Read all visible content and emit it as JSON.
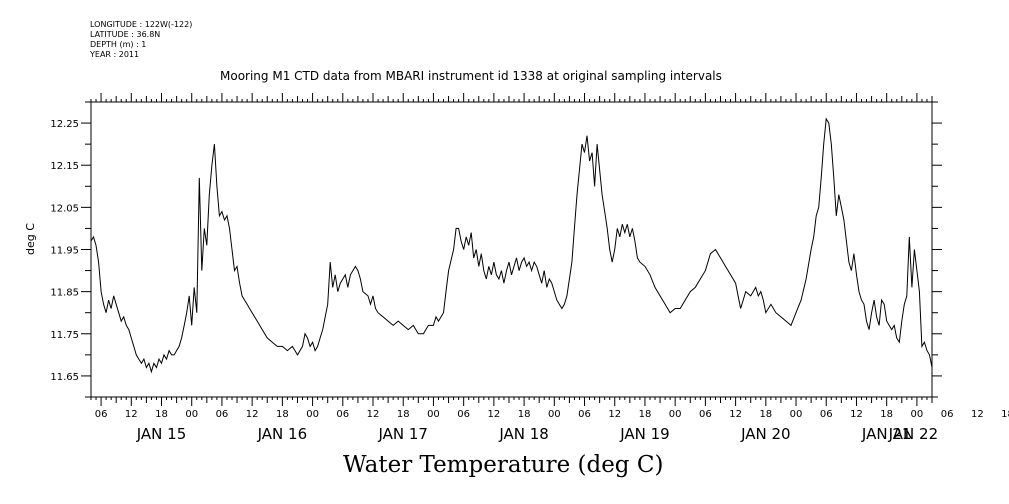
{
  "meta": {
    "longitude": "LONGITUDE : 122W(-122)",
    "latitude": "LATITUDE : 36.8N",
    "depth": "DEPTH (m) : 1",
    "year": "YEAR : 2011"
  },
  "chart_data": {
    "type": "line",
    "title": "Mooring M1 CTD data from MBARI instrument id 1338 at original sampling intervals",
    "xlabel": "Water Temperature (deg C)",
    "ylabel": "deg C",
    "xlim_hours": [
      0,
      167
    ],
    "ylim": [
      11.6,
      12.3
    ],
    "yticks": [
      "11.65",
      "11.75",
      "11.85",
      "11.95",
      "12.05",
      "12.15",
      "12.25"
    ],
    "hour_tick_labels": [
      "06",
      "12",
      "18",
      "00",
      "06",
      "12",
      "18",
      "00",
      "06",
      "12",
      "18",
      "00",
      "06",
      "12",
      "18",
      "00",
      "06",
      "12",
      "18",
      "00",
      "06",
      "12",
      "18",
      "00",
      "06",
      "12",
      "18",
      "00",
      "06",
      "12",
      "18",
      "00"
    ],
    "day_labels": [
      "JAN 15",
      "JAN 16",
      "JAN 17",
      "JAN 18",
      "JAN 19",
      "JAN 20",
      "JAN 21",
      "JAN 22"
    ],
    "series": [
      {
        "points": [
          [
            0,
            11.97
          ],
          [
            0.5,
            11.98
          ],
          [
            1,
            11.96
          ],
          [
            1.5,
            11.92
          ],
          [
            2,
            11.85
          ],
          [
            2.5,
            11.82
          ],
          [
            3,
            11.8
          ],
          [
            3.5,
            11.83
          ],
          [
            4,
            11.81
          ],
          [
            4.5,
            11.84
          ],
          [
            5,
            11.82
          ],
          [
            5.5,
            11.8
          ],
          [
            6,
            11.78
          ],
          [
            6.5,
            11.79
          ],
          [
            7,
            11.77
          ],
          [
            7.5,
            11.76
          ],
          [
            8,
            11.74
          ],
          [
            8.5,
            11.72
          ],
          [
            9,
            11.7
          ],
          [
            9.5,
            11.69
          ],
          [
            10,
            11.68
          ],
          [
            10.5,
            11.69
          ],
          [
            11,
            11.67
          ],
          [
            11.5,
            11.68
          ],
          [
            12,
            11.66
          ],
          [
            12.5,
            11.68
          ],
          [
            13,
            11.67
          ],
          [
            13.5,
            11.69
          ],
          [
            14,
            11.68
          ],
          [
            14.5,
            11.7
          ],
          [
            15,
            11.69
          ],
          [
            15.5,
            11.71
          ],
          [
            16,
            11.7
          ],
          [
            16.5,
            11.7
          ],
          [
            17,
            11.71
          ],
          [
            17.5,
            11.72
          ],
          [
            18,
            11.74
          ],
          [
            18.5,
            11.77
          ],
          [
            19,
            11.8
          ],
          [
            19.5,
            11.84
          ],
          [
            20,
            11.77
          ],
          [
            20.5,
            11.86
          ],
          [
            21,
            11.8
          ],
          [
            21.5,
            12.12
          ],
          [
            22,
            11.9
          ],
          [
            22.5,
            12.0
          ],
          [
            23,
            11.96
          ],
          [
            23.5,
            12.08
          ],
          [
            24,
            12.15
          ],
          [
            24.5,
            12.2
          ],
          [
            25,
            12.1
          ],
          [
            25.5,
            12.03
          ],
          [
            26,
            12.04
          ],
          [
            26.5,
            12.02
          ],
          [
            27,
            12.03
          ],
          [
            27.5,
            12.0
          ],
          [
            28,
            11.95
          ],
          [
            28.5,
            11.9
          ],
          [
            29,
            11.91
          ],
          [
            29.5,
            11.87
          ],
          [
            30,
            11.84
          ],
          [
            30.5,
            11.83
          ],
          [
            31,
            11.82
          ],
          [
            32,
            11.8
          ],
          [
            33,
            11.78
          ],
          [
            34,
            11.76
          ],
          [
            35,
            11.74
          ],
          [
            36,
            11.73
          ],
          [
            37,
            11.72
          ],
          [
            38,
            11.72
          ],
          [
            39,
            11.71
          ],
          [
            40,
            11.72
          ],
          [
            41,
            11.7
          ],
          [
            42,
            11.72
          ],
          [
            42.5,
            11.75
          ],
          [
            43,
            11.74
          ],
          [
            43.5,
            11.72
          ],
          [
            44,
            11.73
          ],
          [
            44.5,
            11.71
          ],
          [
            45,
            11.72
          ],
          [
            45.5,
            11.74
          ],
          [
            46,
            11.76
          ],
          [
            46.5,
            11.79
          ],
          [
            47,
            11.82
          ],
          [
            47.5,
            11.92
          ],
          [
            48,
            11.86
          ],
          [
            48.5,
            11.89
          ],
          [
            49,
            11.85
          ],
          [
            49.5,
            11.87
          ],
          [
            50,
            11.88
          ],
          [
            50.5,
            11.89
          ],
          [
            51,
            11.86
          ],
          [
            51.5,
            11.89
          ],
          [
            52,
            11.9
          ],
          [
            52.5,
            11.91
          ],
          [
            53,
            11.9
          ],
          [
            53.5,
            11.88
          ],
          [
            54,
            11.85
          ],
          [
            55,
            11.84
          ],
          [
            55.5,
            11.82
          ],
          [
            56,
            11.84
          ],
          [
            56.5,
            11.81
          ],
          [
            57,
            11.8
          ],
          [
            58,
            11.79
          ],
          [
            59,
            11.78
          ],
          [
            60,
            11.77
          ],
          [
            61,
            11.78
          ],
          [
            62,
            11.77
          ],
          [
            63,
            11.76
          ],
          [
            64,
            11.77
          ],
          [
            65,
            11.75
          ],
          [
            66,
            11.75
          ],
          [
            67,
            11.77
          ],
          [
            68,
            11.77
          ],
          [
            68.5,
            11.79
          ],
          [
            69,
            11.78
          ],
          [
            70,
            11.8
          ],
          [
            70.5,
            11.85
          ],
          [
            71,
            11.9
          ],
          [
            72,
            11.95
          ],
          [
            72.5,
            12.0
          ],
          [
            73,
            12.0
          ],
          [
            73.5,
            11.97
          ],
          [
            74,
            11.95
          ],
          [
            74.5,
            11.98
          ],
          [
            75,
            11.96
          ],
          [
            75.5,
            11.99
          ],
          [
            76,
            11.93
          ],
          [
            76.5,
            11.95
          ],
          [
            77,
            11.91
          ],
          [
            77.5,
            11.94
          ],
          [
            78,
            11.9
          ],
          [
            78.5,
            11.88
          ],
          [
            79,
            11.91
          ],
          [
            79.5,
            11.89
          ],
          [
            80,
            11.92
          ],
          [
            80.5,
            11.89
          ],
          [
            81,
            11.88
          ],
          [
            81.5,
            11.9
          ],
          [
            82,
            11.87
          ],
          [
            82.5,
            11.9
          ],
          [
            83,
            11.92
          ],
          [
            83.5,
            11.89
          ],
          [
            84,
            11.91
          ],
          [
            84.5,
            11.93
          ],
          [
            85,
            11.9
          ],
          [
            85.5,
            11.92
          ],
          [
            86,
            11.93
          ],
          [
            86.5,
            11.91
          ],
          [
            87,
            11.92
          ],
          [
            87.5,
            11.9
          ],
          [
            88,
            11.92
          ],
          [
            88.5,
            11.91
          ],
          [
            89,
            11.89
          ],
          [
            89.5,
            11.87
          ],
          [
            90,
            11.9
          ],
          [
            90.5,
            11.86
          ],
          [
            91,
            11.88
          ],
          [
            91.5,
            11.87
          ],
          [
            92,
            11.85
          ],
          [
            92.5,
            11.83
          ],
          [
            93,
            11.82
          ],
          [
            93.5,
            11.81
          ],
          [
            94,
            11.82
          ],
          [
            94.5,
            11.84
          ],
          [
            95,
            11.88
          ],
          [
            95.5,
            11.92
          ],
          [
            96,
            12.0
          ],
          [
            96.5,
            12.08
          ],
          [
            97,
            12.14
          ],
          [
            97.5,
            12.2
          ],
          [
            98,
            12.18
          ],
          [
            98.5,
            12.22
          ],
          [
            99,
            12.16
          ],
          [
            99.5,
            12.18
          ],
          [
            100,
            12.1
          ],
          [
            100.5,
            12.2
          ],
          [
            101,
            12.14
          ],
          [
            101.5,
            12.08
          ],
          [
            102,
            12.04
          ],
          [
            102.5,
            12.0
          ],
          [
            103,
            11.95
          ],
          [
            103.5,
            11.92
          ],
          [
            104,
            11.95
          ],
          [
            104.5,
            12.0
          ],
          [
            105,
            11.98
          ],
          [
            105.5,
            12.01
          ],
          [
            106,
            11.99
          ],
          [
            106.5,
            12.01
          ],
          [
            107,
            11.98
          ],
          [
            107.5,
            12.0
          ],
          [
            108,
            11.97
          ],
          [
            108.5,
            11.93
          ],
          [
            109,
            11.92
          ],
          [
            110,
            11.91
          ],
          [
            111,
            11.89
          ],
          [
            112,
            11.86
          ],
          [
            113,
            11.84
          ],
          [
            114,
            11.82
          ],
          [
            115,
            11.8
          ],
          [
            116,
            11.81
          ],
          [
            117,
            11.81
          ],
          [
            118,
            11.83
          ],
          [
            119,
            11.85
          ],
          [
            120,
            11.86
          ],
          [
            121,
            11.88
          ],
          [
            122,
            11.9
          ],
          [
            123,
            11.94
          ],
          [
            124,
            11.95
          ],
          [
            125,
            11.93
          ],
          [
            126,
            11.91
          ],
          [
            127,
            11.89
          ],
          [
            128,
            11.87
          ],
          [
            128.5,
            11.84
          ],
          [
            129,
            11.81
          ],
          [
            129.5,
            11.83
          ],
          [
            130,
            11.85
          ],
          [
            131,
            11.84
          ],
          [
            132,
            11.86
          ],
          [
            132.5,
            11.84
          ],
          [
            133,
            11.85
          ],
          [
            133.5,
            11.83
          ],
          [
            134,
            11.8
          ],
          [
            135,
            11.82
          ],
          [
            136,
            11.8
          ],
          [
            137,
            11.79
          ],
          [
            138,
            11.78
          ],
          [
            139,
            11.77
          ],
          [
            140,
            11.8
          ],
          [
            141,
            11.83
          ],
          [
            142,
            11.88
          ],
          [
            143,
            11.95
          ],
          [
            143.5,
            11.98
          ],
          [
            144,
            12.03
          ],
          [
            144.5,
            12.05
          ],
          [
            145,
            12.12
          ],
          [
            145.5,
            12.2
          ],
          [
            146,
            12.26
          ],
          [
            146.5,
            12.25
          ],
          [
            147,
            12.2
          ],
          [
            147.5,
            12.12
          ],
          [
            148,
            12.03
          ],
          [
            148.5,
            12.08
          ],
          [
            149,
            12.05
          ],
          [
            149.5,
            12.02
          ],
          [
            150,
            11.97
          ],
          [
            150.5,
            11.92
          ],
          [
            151,
            11.9
          ],
          [
            151.5,
            11.94
          ],
          [
            152,
            11.89
          ],
          [
            152.5,
            11.85
          ],
          [
            153,
            11.83
          ],
          [
            153.5,
            11.82
          ],
          [
            154,
            11.78
          ],
          [
            154.5,
            11.76
          ],
          [
            155,
            11.8
          ],
          [
            155.5,
            11.83
          ],
          [
            156,
            11.79
          ],
          [
            156.5,
            11.77
          ],
          [
            157,
            11.83
          ],
          [
            157.5,
            11.82
          ],
          [
            158,
            11.78
          ],
          [
            158.5,
            11.77
          ],
          [
            159,
            11.76
          ],
          [
            159.5,
            11.77
          ],
          [
            160,
            11.74
          ],
          [
            160.5,
            11.73
          ],
          [
            161,
            11.78
          ],
          [
            161.5,
            11.82
          ],
          [
            162,
            11.84
          ],
          [
            162.5,
            11.98
          ],
          [
            163,
            11.86
          ],
          [
            163.5,
            11.95
          ],
          [
            164,
            11.9
          ],
          [
            164.5,
            11.85
          ],
          [
            165,
            11.72
          ],
          [
            165.5,
            11.73
          ],
          [
            166,
            11.71
          ],
          [
            166.5,
            11.7
          ],
          [
            167,
            11.67
          ]
        ]
      }
    ]
  }
}
